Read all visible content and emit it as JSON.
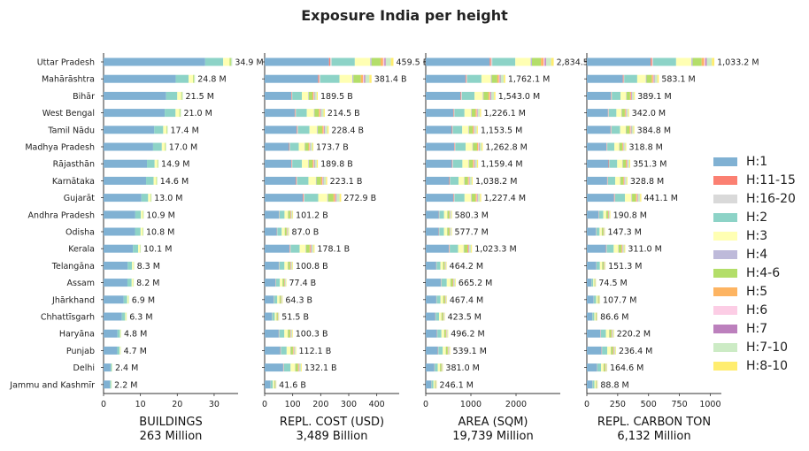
{
  "title": "Exposure India per height",
  "legend": [
    {
      "name": "H:1",
      "color": "#80b1d3"
    },
    {
      "name": "H:11-15",
      "color": "#fb8072"
    },
    {
      "name": "H:16-20",
      "color": "#d9d9d9"
    },
    {
      "name": "H:2",
      "color": "#8dd3c7"
    },
    {
      "name": "H:3",
      "color": "#ffffb3"
    },
    {
      "name": "H:4",
      "color": "#bebada"
    },
    {
      "name": "H:4-6",
      "color": "#b3de69"
    },
    {
      "name": "H:5",
      "color": "#fdb462"
    },
    {
      "name": "H:6",
      "color": "#fccde5"
    },
    {
      "name": "H:7",
      "color": "#bc80bd"
    },
    {
      "name": "H:7-10",
      "color": "#ccebc5"
    },
    {
      "name": "H:8-10",
      "color": "#ffed6f"
    }
  ],
  "chart_data": {
    "type": "bar",
    "orientation": "horizontal",
    "stacked": true,
    "categories": [
      "Uttar Pradesh",
      "Mahārāshtra",
      "Bihār",
      "West Bengal",
      "Tamil Nādu",
      "Madhya Pradesh",
      "Rājasthān",
      "Karnātaka",
      "Gujarāt",
      "Andhra Pradesh",
      "Odisha",
      "Kerala",
      "Telangāna",
      "Assam",
      "Jhārkhand",
      "Chhattīsgarh",
      "Haryāna",
      "Punjab",
      "Delhi",
      "Jammu and Kashmīr"
    ],
    "panels": [
      {
        "xlabel": "BUILDINGS",
        "subtitle": "263 Million",
        "xlim": [
          0,
          36.5
        ],
        "xticks": [
          "0",
          "10",
          "20",
          "30"
        ],
        "xtick_values": [
          0,
          10,
          20,
          30
        ],
        "totals": [
          34.9,
          24.8,
          21.5,
          21.0,
          17.4,
          17.0,
          14.9,
          14.6,
          13.0,
          10.9,
          10.8,
          10.1,
          8.3,
          8.2,
          6.9,
          6.3,
          4.8,
          4.7,
          2.4,
          2.2
        ],
        "total_labels": [
          "34.9 M",
          "24.8 M",
          "21.5 M",
          "21.0 M",
          "17.4 M",
          "17.0 M",
          "14.9 M",
          "14.6 M",
          "13.0 M",
          "10.9 M",
          "10.8 M",
          "10.1 M",
          "8.3 M",
          "8.2 M",
          "6.9 M",
          "6.3 M",
          "4.8 M",
          "4.7 M",
          "2.4 M",
          "2.2 M"
        ]
      },
      {
        "xlabel": "REPL. COST (USD)",
        "subtitle": "3,489 Billion",
        "xlim": [
          0,
          480
        ],
        "xticks": [
          "0",
          "100",
          "200",
          "300",
          "400"
        ],
        "xtick_values": [
          0,
          100,
          200,
          300,
          400
        ],
        "totals": [
          459.5,
          381.4,
          189.5,
          214.5,
          228.4,
          173.7,
          189.8,
          223.1,
          272.9,
          101.2,
          87.0,
          178.1,
          100.8,
          77.4,
          64.3,
          51.5,
          100.3,
          112.1,
          132.1,
          41.6
        ],
        "total_labels": [
          "459.5 B",
          "381.4 B",
          "189.5 B",
          "214.5 B",
          "228.4 B",
          "173.7 B",
          "189.8 B",
          "223.1 B",
          "272.9 B",
          "101.2 B",
          "87.0 B",
          "178.1 B",
          "100.8 B",
          "77.4 B",
          "64.3 B",
          "51.5 B",
          "100.3 B",
          "112.1 B",
          "132.1 B",
          "41.6 B"
        ]
      },
      {
        "xlabel": "AREA (SQM)",
        "subtitle": "19,739 Million",
        "xlim": [
          0,
          2980
        ],
        "xticks": [
          "0",
          "1000",
          "2000"
        ],
        "xtick_values": [
          0,
          1000,
          2000
        ],
        "totals": [
          2834.5,
          1762.1,
          1543.0,
          1226.1,
          1153.5,
          1262.8,
          1159.4,
          1038.2,
          1227.4,
          580.3,
          577.7,
          1023.3,
          464.2,
          665.2,
          467.4,
          423.5,
          496.2,
          539.1,
          381.0,
          246.1
        ],
        "total_labels": [
          "2,834.5 M",
          "1,762.1 M",
          "1,543.0 M",
          "1,226.1 M",
          "1,153.5 M",
          "1,262.8 M",
          "1,159.4 M",
          "1,038.2 M",
          "1,227.4 M",
          "580.3 M",
          "577.7 M",
          "1,023.3 M",
          "464.2 M",
          "665.2 M",
          "467.4 M",
          "423.5 M",
          "496.2 M",
          "539.1 M",
          "381.0 M",
          "246.1 M"
        ]
      },
      {
        "xlabel": "REPL. CARBON TON",
        "subtitle": "6,132 Million",
        "xlim": [
          0,
          1090
        ],
        "xticks": [
          "0",
          "250",
          "500",
          "750",
          "1000"
        ],
        "xtick_values": [
          0,
          250,
          500,
          750,
          1000
        ],
        "totals": [
          1033.2,
          583.1,
          389.1,
          342.0,
          384.8,
          318.8,
          351.3,
          328.8,
          441.1,
          190.8,
          147.3,
          311.0,
          151.3,
          74.5,
          107.7,
          86.6,
          220.2,
          236.4,
          164.6,
          88.8
        ],
        "total_labels": [
          "1,033.2 M",
          "583.1 M",
          "389.1 M",
          "342.0 M",
          "384.8 M",
          "318.8 M",
          "351.3 M",
          "328.8 M",
          "441.1 M",
          "190.8 M",
          "147.3 M",
          "311.0 M",
          "151.3 M",
          "74.5 M",
          "107.7 M",
          "86.6 M",
          "220.2 M",
          "236.4 M",
          "164.6 M",
          "88.8 M"
        ]
      }
    ],
    "segment_shares": {
      "series_order": [
        "H:1",
        "H:11-15",
        "H:16-20",
        "H:2",
        "H:3",
        "H:4",
        "H:4-6",
        "H:5",
        "H:6",
        "H:7",
        "H:7-10",
        "H:8-10"
      ],
      "buildings_default": [
        0.79,
        0,
        0,
        0.14,
        0.05,
        0,
        0.01,
        0,
        0,
        0,
        0.01,
        0
      ],
      "others_default": [
        0.5,
        0.01,
        0.01,
        0.18,
        0.12,
        0.01,
        0.07,
        0.02,
        0.01,
        0.01,
        0.04,
        0.02
      ]
    },
    "grid": false,
    "legend_position": "right"
  }
}
